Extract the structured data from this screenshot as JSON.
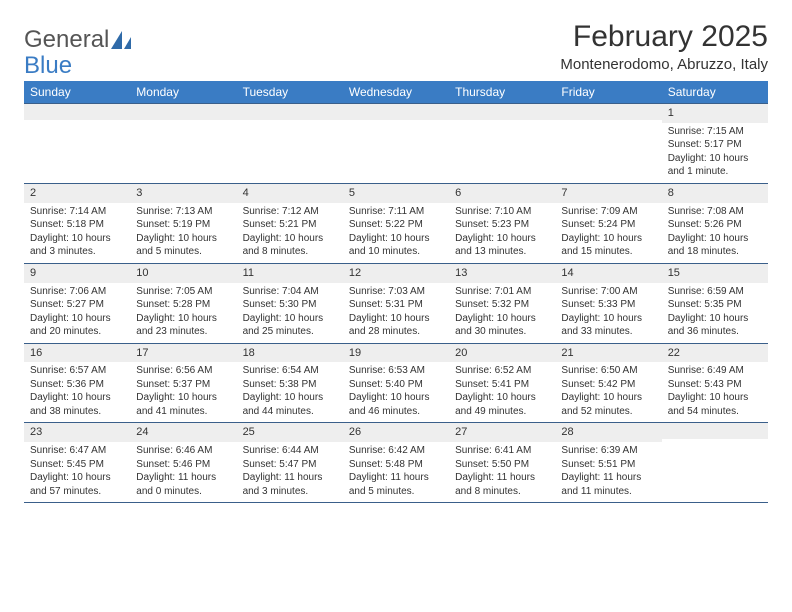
{
  "logo": {
    "text_general": "General",
    "text_blue": "Blue"
  },
  "title": "February 2025",
  "location": "Montenerodomo, Abruzzo, Italy",
  "colors": {
    "header_bar": "#3a7cc4",
    "header_text": "#ffffff",
    "grid_line": "#3a5f8a",
    "daynum_bg": "#eeeeee",
    "body_text": "#333333",
    "page_bg": "#ffffff"
  },
  "weekdays": [
    "Sunday",
    "Monday",
    "Tuesday",
    "Wednesday",
    "Thursday",
    "Friday",
    "Saturday"
  ],
  "weeks": [
    [
      {
        "num": "",
        "sunrise": "",
        "sunset": "",
        "daylight": ""
      },
      {
        "num": "",
        "sunrise": "",
        "sunset": "",
        "daylight": ""
      },
      {
        "num": "",
        "sunrise": "",
        "sunset": "",
        "daylight": ""
      },
      {
        "num": "",
        "sunrise": "",
        "sunset": "",
        "daylight": ""
      },
      {
        "num": "",
        "sunrise": "",
        "sunset": "",
        "daylight": ""
      },
      {
        "num": "",
        "sunrise": "",
        "sunset": "",
        "daylight": ""
      },
      {
        "num": "1",
        "sunrise": "Sunrise: 7:15 AM",
        "sunset": "Sunset: 5:17 PM",
        "daylight": "Daylight: 10 hours and 1 minute."
      }
    ],
    [
      {
        "num": "2",
        "sunrise": "Sunrise: 7:14 AM",
        "sunset": "Sunset: 5:18 PM",
        "daylight": "Daylight: 10 hours and 3 minutes."
      },
      {
        "num": "3",
        "sunrise": "Sunrise: 7:13 AM",
        "sunset": "Sunset: 5:19 PM",
        "daylight": "Daylight: 10 hours and 5 minutes."
      },
      {
        "num": "4",
        "sunrise": "Sunrise: 7:12 AM",
        "sunset": "Sunset: 5:21 PM",
        "daylight": "Daylight: 10 hours and 8 minutes."
      },
      {
        "num": "5",
        "sunrise": "Sunrise: 7:11 AM",
        "sunset": "Sunset: 5:22 PM",
        "daylight": "Daylight: 10 hours and 10 minutes."
      },
      {
        "num": "6",
        "sunrise": "Sunrise: 7:10 AM",
        "sunset": "Sunset: 5:23 PM",
        "daylight": "Daylight: 10 hours and 13 minutes."
      },
      {
        "num": "7",
        "sunrise": "Sunrise: 7:09 AM",
        "sunset": "Sunset: 5:24 PM",
        "daylight": "Daylight: 10 hours and 15 minutes."
      },
      {
        "num": "8",
        "sunrise": "Sunrise: 7:08 AM",
        "sunset": "Sunset: 5:26 PM",
        "daylight": "Daylight: 10 hours and 18 minutes."
      }
    ],
    [
      {
        "num": "9",
        "sunrise": "Sunrise: 7:06 AM",
        "sunset": "Sunset: 5:27 PM",
        "daylight": "Daylight: 10 hours and 20 minutes."
      },
      {
        "num": "10",
        "sunrise": "Sunrise: 7:05 AM",
        "sunset": "Sunset: 5:28 PM",
        "daylight": "Daylight: 10 hours and 23 minutes."
      },
      {
        "num": "11",
        "sunrise": "Sunrise: 7:04 AM",
        "sunset": "Sunset: 5:30 PM",
        "daylight": "Daylight: 10 hours and 25 minutes."
      },
      {
        "num": "12",
        "sunrise": "Sunrise: 7:03 AM",
        "sunset": "Sunset: 5:31 PM",
        "daylight": "Daylight: 10 hours and 28 minutes."
      },
      {
        "num": "13",
        "sunrise": "Sunrise: 7:01 AM",
        "sunset": "Sunset: 5:32 PM",
        "daylight": "Daylight: 10 hours and 30 minutes."
      },
      {
        "num": "14",
        "sunrise": "Sunrise: 7:00 AM",
        "sunset": "Sunset: 5:33 PM",
        "daylight": "Daylight: 10 hours and 33 minutes."
      },
      {
        "num": "15",
        "sunrise": "Sunrise: 6:59 AM",
        "sunset": "Sunset: 5:35 PM",
        "daylight": "Daylight: 10 hours and 36 minutes."
      }
    ],
    [
      {
        "num": "16",
        "sunrise": "Sunrise: 6:57 AM",
        "sunset": "Sunset: 5:36 PM",
        "daylight": "Daylight: 10 hours and 38 minutes."
      },
      {
        "num": "17",
        "sunrise": "Sunrise: 6:56 AM",
        "sunset": "Sunset: 5:37 PM",
        "daylight": "Daylight: 10 hours and 41 minutes."
      },
      {
        "num": "18",
        "sunrise": "Sunrise: 6:54 AM",
        "sunset": "Sunset: 5:38 PM",
        "daylight": "Daylight: 10 hours and 44 minutes."
      },
      {
        "num": "19",
        "sunrise": "Sunrise: 6:53 AM",
        "sunset": "Sunset: 5:40 PM",
        "daylight": "Daylight: 10 hours and 46 minutes."
      },
      {
        "num": "20",
        "sunrise": "Sunrise: 6:52 AM",
        "sunset": "Sunset: 5:41 PM",
        "daylight": "Daylight: 10 hours and 49 minutes."
      },
      {
        "num": "21",
        "sunrise": "Sunrise: 6:50 AM",
        "sunset": "Sunset: 5:42 PM",
        "daylight": "Daylight: 10 hours and 52 minutes."
      },
      {
        "num": "22",
        "sunrise": "Sunrise: 6:49 AM",
        "sunset": "Sunset: 5:43 PM",
        "daylight": "Daylight: 10 hours and 54 minutes."
      }
    ],
    [
      {
        "num": "23",
        "sunrise": "Sunrise: 6:47 AM",
        "sunset": "Sunset: 5:45 PM",
        "daylight": "Daylight: 10 hours and 57 minutes."
      },
      {
        "num": "24",
        "sunrise": "Sunrise: 6:46 AM",
        "sunset": "Sunset: 5:46 PM",
        "daylight": "Daylight: 11 hours and 0 minutes."
      },
      {
        "num": "25",
        "sunrise": "Sunrise: 6:44 AM",
        "sunset": "Sunset: 5:47 PM",
        "daylight": "Daylight: 11 hours and 3 minutes."
      },
      {
        "num": "26",
        "sunrise": "Sunrise: 6:42 AM",
        "sunset": "Sunset: 5:48 PM",
        "daylight": "Daylight: 11 hours and 5 minutes."
      },
      {
        "num": "27",
        "sunrise": "Sunrise: 6:41 AM",
        "sunset": "Sunset: 5:50 PM",
        "daylight": "Daylight: 11 hours and 8 minutes."
      },
      {
        "num": "28",
        "sunrise": "Sunrise: 6:39 AM",
        "sunset": "Sunset: 5:51 PM",
        "daylight": "Daylight: 11 hours and 11 minutes."
      },
      {
        "num": "",
        "sunrise": "",
        "sunset": "",
        "daylight": ""
      }
    ]
  ]
}
